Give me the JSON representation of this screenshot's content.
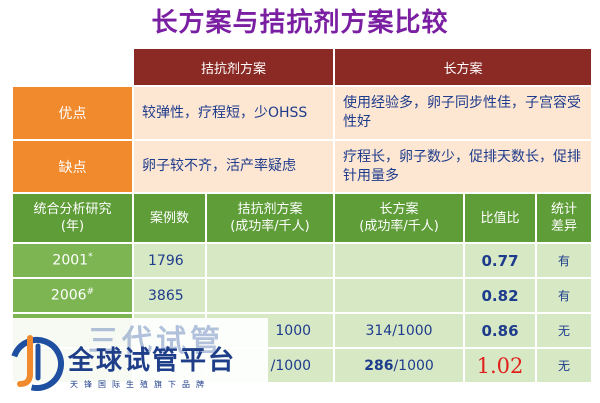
{
  "title": "长方案与拮抗剂方案比较",
  "header": {
    "col1": "拮抗剂方案",
    "col2": "长方案"
  },
  "advantages": {
    "label": "优点",
    "antagonist": "较弹性，疗程短，少OHSS",
    "long": "使用经验多，卵子同步性佳，子宫容受性好"
  },
  "disadvantages": {
    "label": "缺点",
    "antagonist": "卵子较不齐，活产率疑虑",
    "long": "疗程长，卵子数少，促排天数长，促排针用量多"
  },
  "stats_header": {
    "study": "统合分析研究\n(年)",
    "cases": "案例数",
    "antagonist": "拮抗剂方案\n(成功率/千人)",
    "long": "长方案\n(成功率/千人)",
    "ratio": "比值比",
    "significance": "统计\n差异"
  },
  "rows": [
    {
      "year": "2001",
      "mark": "*",
      "cases": "1796",
      "antagonist": "",
      "long": "",
      "ratio": "0.77",
      "sig": "有"
    },
    {
      "year": "2006",
      "mark": "#",
      "cases": "3865",
      "antagonist": "",
      "long": "",
      "ratio": "0.82",
      "sig": "有"
    },
    {
      "year": "",
      "mark": "",
      "cases": "",
      "antagonist": "1000",
      "long": "314/1000",
      "ratio": "0.86",
      "sig": "无"
    },
    {
      "year": "",
      "mark": "",
      "cases": "",
      "antagonist": "/1000",
      "long_bold": "286",
      "long_rest": "/1000",
      "ratio": "1.02",
      "sig": "无"
    }
  ],
  "watermark": {
    "ghost": "三代试管",
    "name": "全球试管平台",
    "sub": "天锋国际生殖旗下品牌"
  },
  "colors": {
    "title": "#7a1fa2",
    "header": "#8b2a24",
    "orange": "#f08a2c",
    "green": "#5f9d39",
    "ratio_highlight": "#e0211b"
  }
}
